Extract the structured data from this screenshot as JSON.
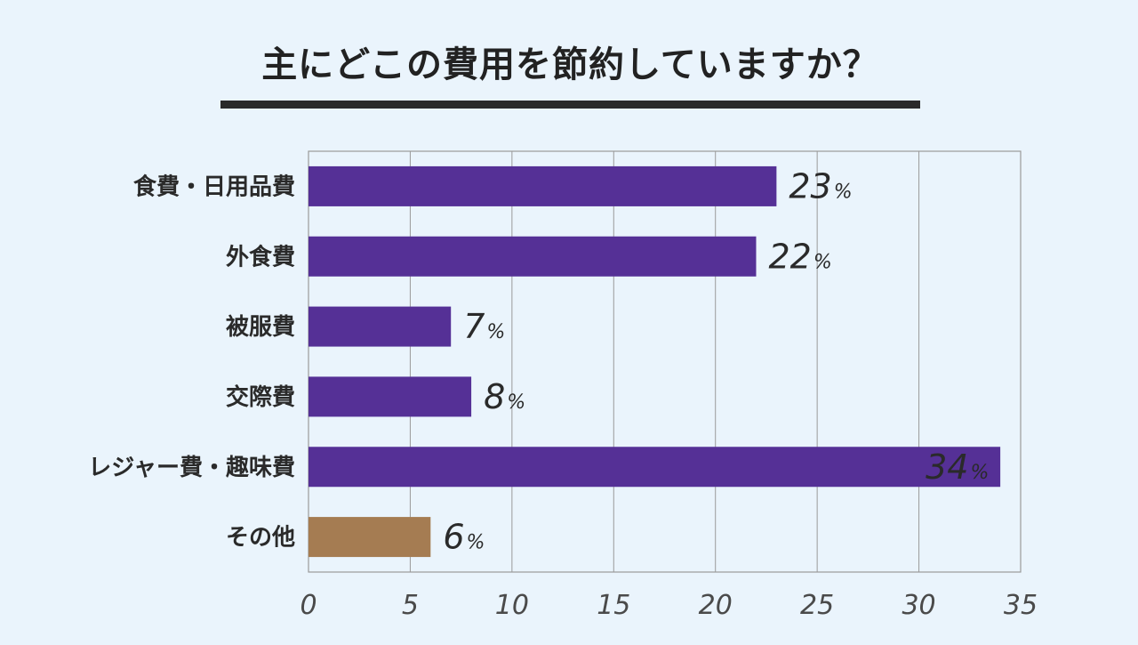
{
  "title": "主にどこの費用を節約していますか？",
  "chart_data": {
    "type": "bar",
    "orientation": "horizontal",
    "title": "主にどこの費用を節約していますか？",
    "categories": [
      "食費・日用品費",
      "外食費",
      "被服費",
      "交際費",
      "レジャー費・趣味費",
      "その他"
    ],
    "values": [
      23,
      22,
      7,
      8,
      34,
      6
    ],
    "value_suffix": "%",
    "colors": [
      "#553096",
      "#553096",
      "#553096",
      "#553096",
      "#553096",
      "#a57c52"
    ],
    "xlim": [
      0,
      35
    ],
    "xticks": [
      0,
      5,
      10,
      15,
      20,
      25,
      30,
      35
    ],
    "grid": true
  }
}
